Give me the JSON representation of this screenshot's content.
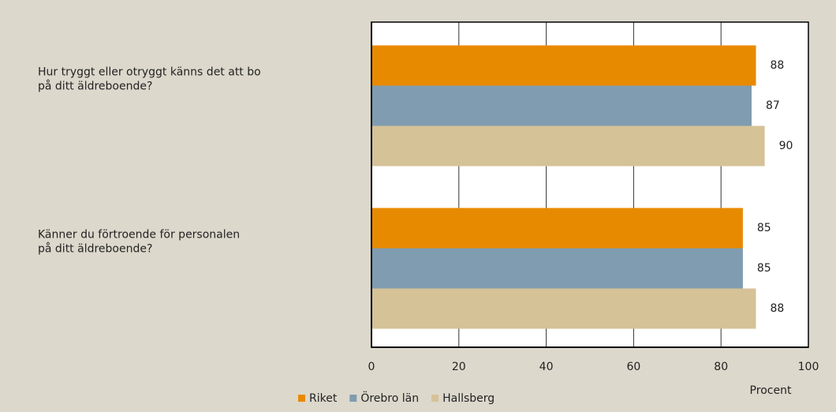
{
  "chart_data": {
    "type": "barh",
    "categories": [
      "Hur tryggt eller otryggt känns det att bo\npå ditt äldreboende?",
      "Känner du förtroende för personalen\npå ditt äldreboende?"
    ],
    "series": [
      {
        "name": "Riket",
        "color": "#e88a00",
        "values": [
          88,
          85
        ]
      },
      {
        "name": "Örebro län",
        "color": "#7f9cb0",
        "values": [
          87,
          85
        ]
      },
      {
        "name": "Hallsberg",
        "color": "#d5c297",
        "values": [
          90,
          88
        ]
      }
    ],
    "xlim": [
      0,
      100
    ],
    "xticks": [
      0,
      20,
      40,
      60,
      80,
      100
    ],
    "grid": true,
    "xlabel": "Procent",
    "legend": "bottom"
  }
}
